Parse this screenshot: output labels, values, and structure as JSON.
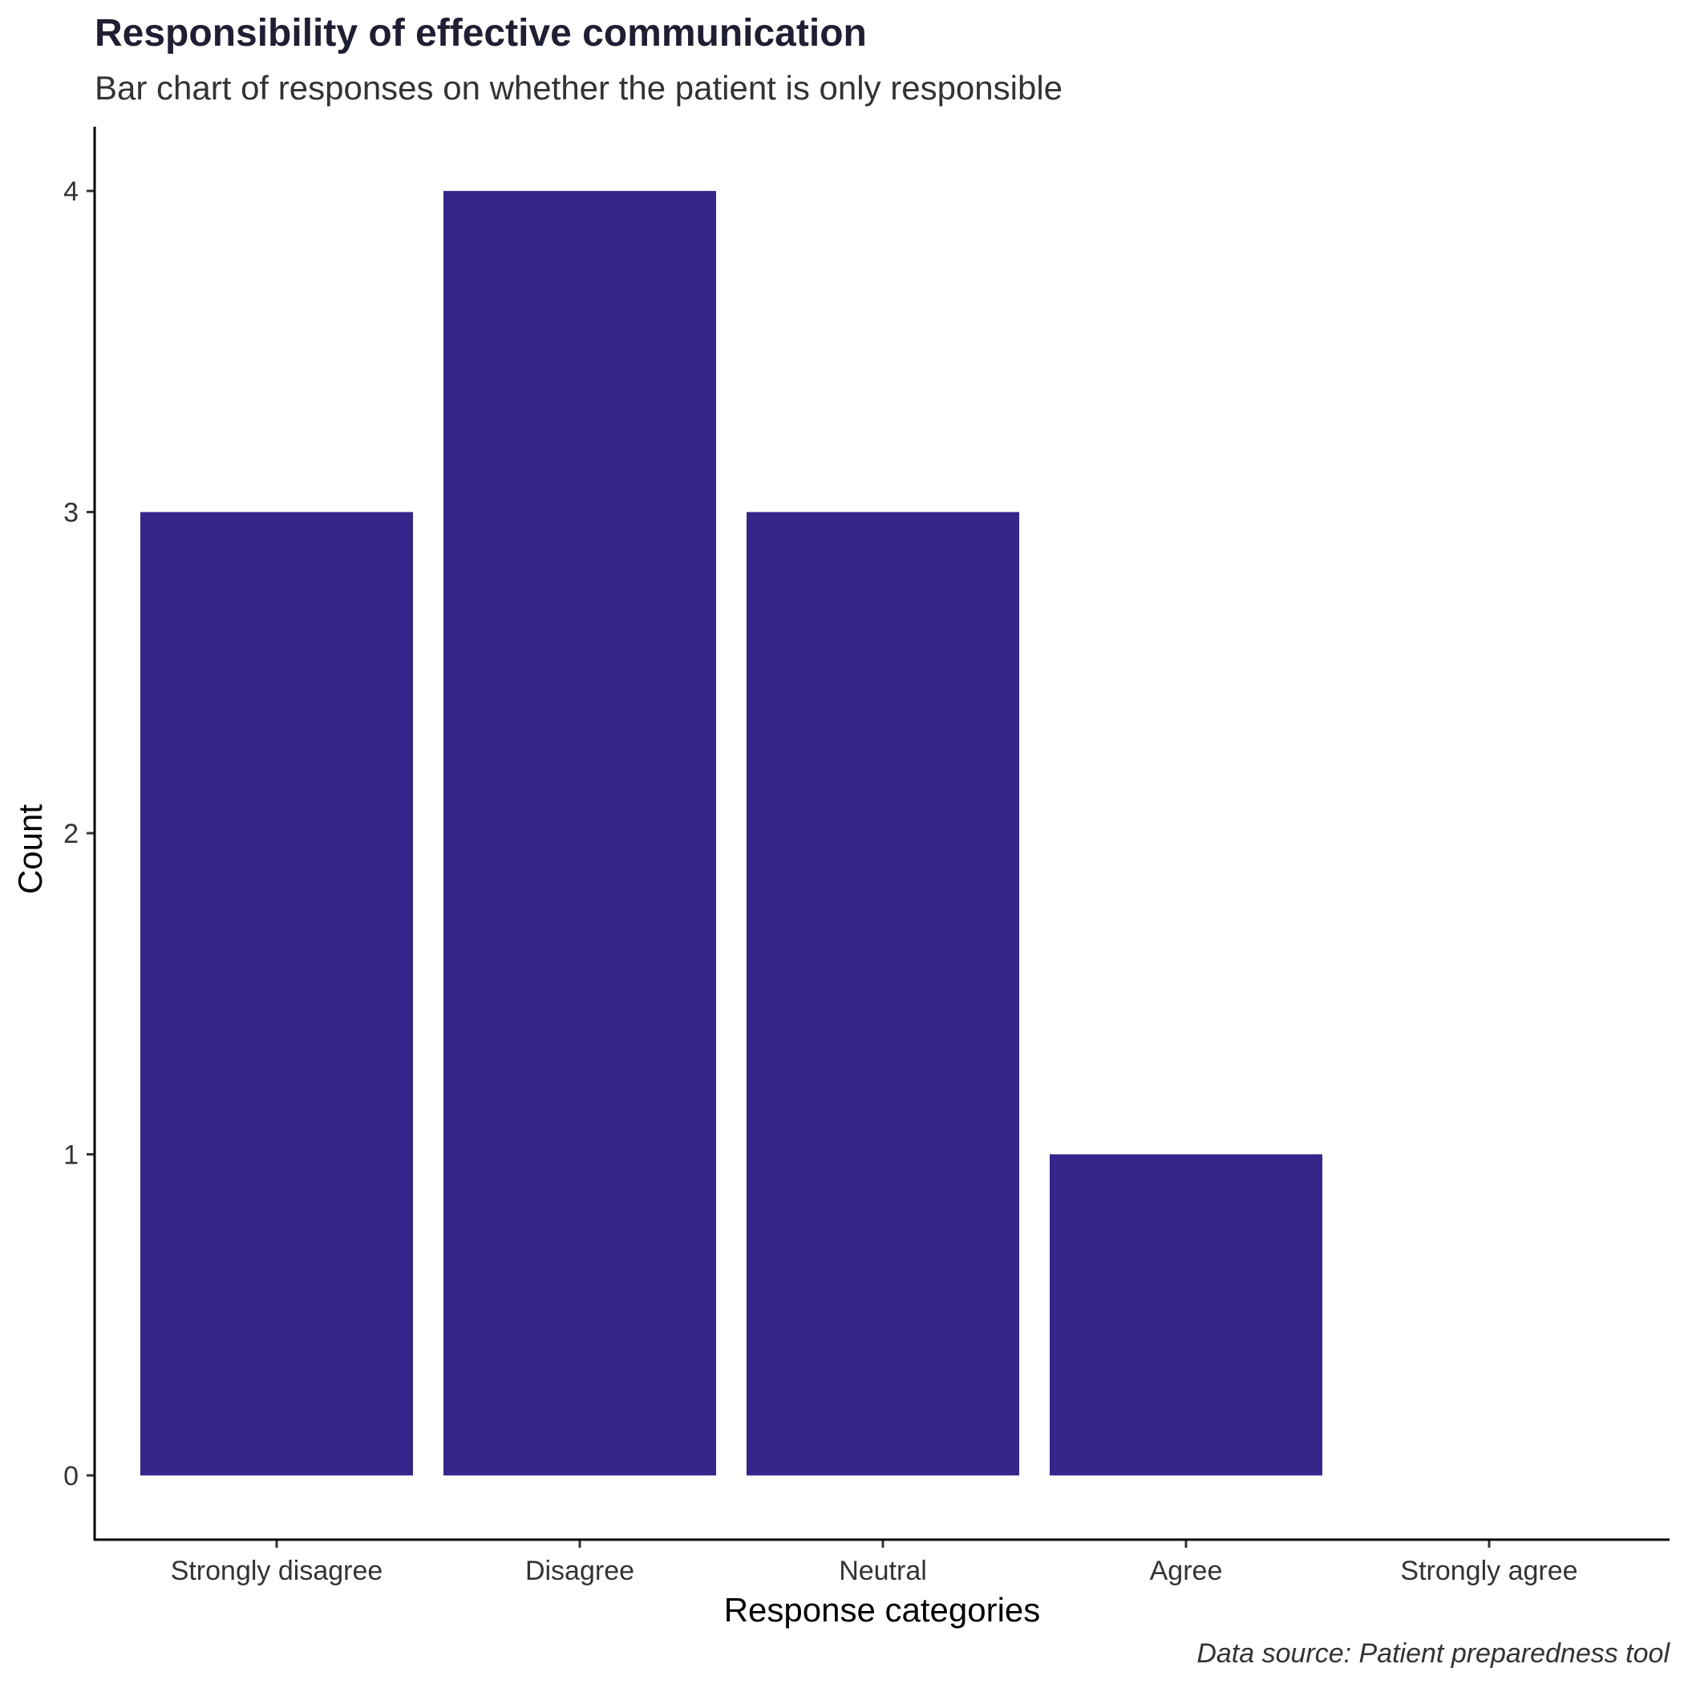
{
  "chart_data": {
    "type": "bar",
    "title": "Responsibility of effective communication",
    "subtitle": "Bar chart of responses on whether the patient is only responsible",
    "xlabel": "Response categories",
    "ylabel": "Count",
    "caption": "Data source: Patient preparedness tool",
    "categories": [
      "Strongly disagree",
      "Disagree",
      "Neutral",
      "Agree",
      "Strongly agree"
    ],
    "values": [
      3,
      4,
      3,
      1,
      0
    ],
    "ylim": [
      -0.2,
      4.2
    ],
    "yticks": [
      0,
      1,
      2,
      3,
      4
    ],
    "grid": false,
    "legend": "none",
    "bar_color": "#36268c"
  }
}
